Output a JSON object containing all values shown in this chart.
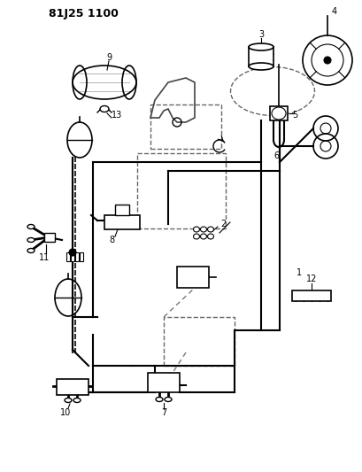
{
  "title": "81J25 1100",
  "bg_color": "#ffffff",
  "line_color": "#000000",
  "dashed_color": "#555555",
  "fig_width": 4.09,
  "fig_height": 5.33,
  "dpi": 100
}
